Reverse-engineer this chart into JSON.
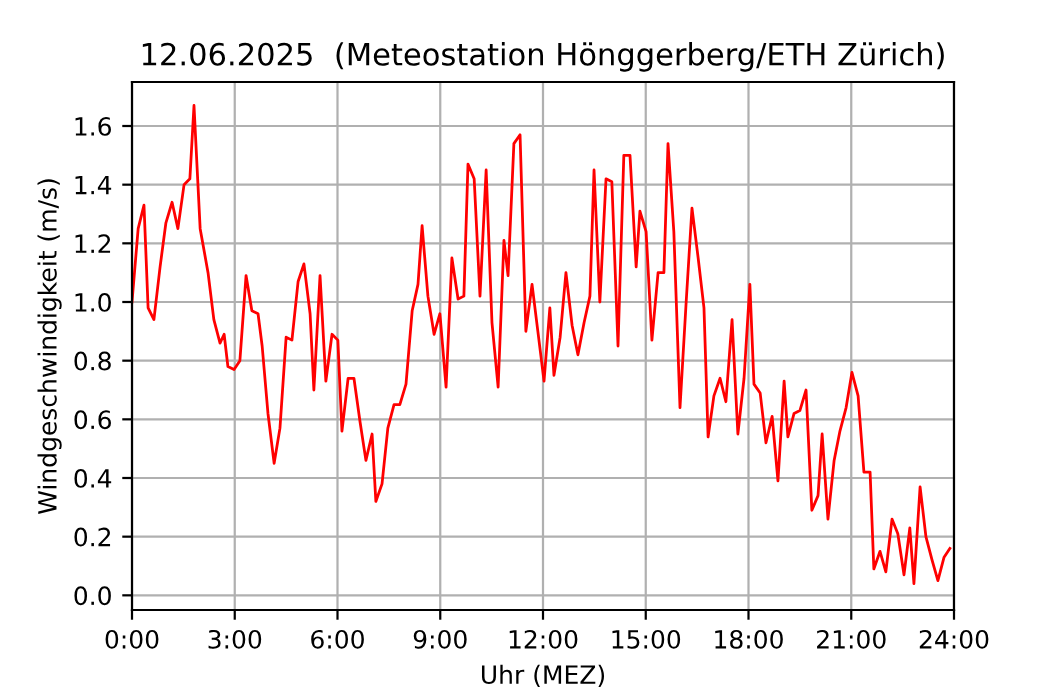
{
  "chart_data": {
    "type": "line",
    "title": "12.06.2025  (Meteostation Hönggerberg/ETH Zürich)",
    "xlabel": "Uhr (MEZ)",
    "ylabel": "Windgeschwindigkeit (m/s)",
    "x": [
      0,
      0.18,
      0.35,
      0.47,
      0.64,
      0.82,
      0.99,
      1.17,
      1.34,
      1.52,
      1.69,
      1.81,
      1.99,
      2.22,
      2.39,
      2.57,
      2.69,
      2.8,
      2.98,
      3.15,
      3.33,
      3.5,
      3.68,
      3.8,
      3.97,
      4.15,
      4.32,
      4.5,
      4.67,
      4.85,
      5.02,
      5.2,
      5.31,
      5.49,
      5.66,
      5.84,
      6.01,
      6.13,
      6.31,
      6.48,
      6.66,
      6.83,
      7.01,
      7.12,
      7.3,
      7.47,
      7.65,
      7.82,
      8.0,
      8.18,
      8.35,
      8.47,
      8.64,
      8.82,
      8.99,
      9.17,
      9.34,
      9.52,
      9.69,
      9.81,
      9.99,
      10.16,
      10.34,
      10.51,
      10.69,
      10.86,
      10.98,
      11.15,
      11.33,
      11.5,
      11.68,
      11.85,
      12.03,
      12.2,
      12.32,
      12.5,
      12.67,
      12.85,
      13.02,
      13.2,
      13.37,
      13.49,
      13.66,
      13.84,
      14.01,
      14.19,
      14.36,
      14.54,
      14.72,
      14.83,
      15.01,
      15.18,
      15.36,
      15.53,
      15.65,
      15.82,
      16.0,
      16.18,
      16.35,
      16.53,
      16.7,
      16.82,
      16.99,
      17.17,
      17.34,
      17.52,
      17.69,
      17.87,
      18.04,
      18.16,
      18.34,
      18.51,
      18.69,
      18.86,
      19.04,
      19.15,
      19.33,
      19.5,
      19.68,
      19.85,
      20.03,
      20.15,
      20.32,
      20.5,
      20.67,
      20.85,
      21.02,
      21.2,
      21.37,
      21.55,
      21.66,
      21.84,
      22.01,
      22.19,
      22.36,
      22.54,
      22.71,
      22.83,
      23.01,
      23.18,
      23.36,
      23.53,
      23.71,
      23.88
    ],
    "series": [
      {
        "color": "#ff0000",
        "values": [
          1.0,
          1.25,
          1.33,
          0.98,
          0.94,
          1.12,
          1.27,
          1.34,
          1.25,
          1.4,
          1.42,
          1.67,
          1.25,
          1.1,
          0.94,
          0.86,
          0.89,
          0.78,
          0.77,
          0.8,
          1.09,
          0.97,
          0.96,
          0.85,
          0.62,
          0.45,
          0.57,
          0.88,
          0.87,
          1.07,
          1.13,
          0.96,
          0.7,
          1.09,
          0.73,
          0.89,
          0.87,
          0.56,
          0.74,
          0.74,
          0.59,
          0.46,
          0.55,
          0.32,
          0.38,
          0.57,
          0.65,
          0.65,
          0.72,
          0.97,
          1.06,
          1.26,
          1.02,
          0.89,
          0.96,
          0.71,
          1.15,
          1.01,
          1.02,
          1.47,
          1.42,
          1.02,
          1.45,
          0.93,
          0.71,
          1.21,
          1.09,
          1.54,
          1.57,
          0.9,
          1.06,
          0.9,
          0.73,
          0.98,
          0.75,
          0.88,
          1.1,
          0.92,
          0.82,
          0.93,
          1.02,
          1.45,
          1.0,
          1.42,
          1.41,
          0.85,
          1.5,
          1.5,
          1.12,
          1.31,
          1.24,
          0.87,
          1.1,
          1.1,
          1.54,
          1.24,
          0.64,
          1.0,
          1.32,
          1.15,
          0.98,
          0.54,
          0.68,
          0.74,
          0.66,
          0.94,
          0.55,
          0.74,
          1.06,
          0.72,
          0.69,
          0.52,
          0.61,
          0.39,
          0.73,
          0.54,
          0.62,
          0.63,
          0.7,
          0.29,
          0.34,
          0.55,
          0.26,
          0.46,
          0.56,
          0.64,
          0.76,
          0.68,
          0.42,
          0.42,
          0.09,
          0.15,
          0.08,
          0.26,
          0.21,
          0.07,
          0.23,
          0.04,
          0.37,
          0.2,
          0.12,
          0.05,
          0.13,
          0.16
        ]
      }
    ],
    "xlim": [
      0,
      24
    ],
    "xticks": [
      {
        "value": 0,
        "label": "0:00"
      },
      {
        "value": 3,
        "label": "3:00"
      },
      {
        "value": 6,
        "label": "6:00"
      },
      {
        "value": 9,
        "label": "9:00"
      },
      {
        "value": 12,
        "label": "12:00"
      },
      {
        "value": 15,
        "label": "15:00"
      },
      {
        "value": 18,
        "label": "18:00"
      },
      {
        "value": 21,
        "label": "21:00"
      },
      {
        "value": 24,
        "label": "24:00"
      }
    ],
    "ylim": [
      -0.05,
      1.75
    ],
    "yticks": [
      {
        "value": 0,
        "label": "0.0"
      },
      {
        "value": 0.2,
        "label": "0.2"
      },
      {
        "value": 0.4,
        "label": "0.4"
      },
      {
        "value": 0.6,
        "label": "0.6"
      },
      {
        "value": 0.8,
        "label": "0.8"
      },
      {
        "value": 1.0,
        "label": "1.0"
      },
      {
        "value": 1.2,
        "label": "1.2"
      },
      {
        "value": 1.4,
        "label": "1.4"
      },
      {
        "value": 1.6,
        "label": "1.6"
      }
    ],
    "grid": true,
    "marker": "none",
    "line_style": "solid"
  }
}
